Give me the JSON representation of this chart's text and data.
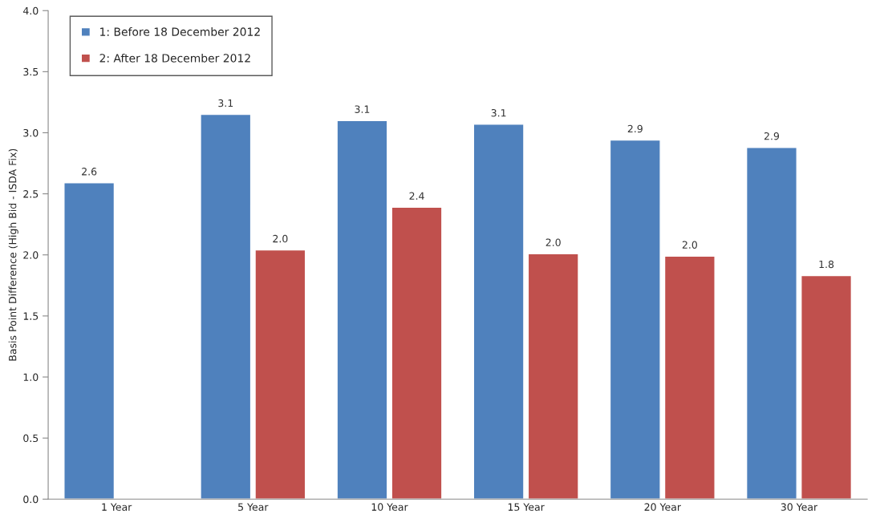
{
  "chart_data": {
    "type": "bar",
    "ylabel": "Basis Point Difference (High Bid - ISDA Fix)",
    "categories": [
      "1 Year",
      "5 Year",
      "10 Year",
      "15 Year",
      "20 Year",
      "30 Year"
    ],
    "series": [
      {
        "name": "1: Before 18 December 2012",
        "color": "#4f81bd",
        "values": [
          2.59,
          3.15,
          3.1,
          3.07,
          2.94,
          2.88
        ],
        "value_labels": [
          "2.6",
          "3.1",
          "3.1",
          "3.1",
          "2.9",
          "2.9"
        ]
      },
      {
        "name": "2: After 18 December 2012",
        "color": "#c0504d",
        "values": [
          null,
          2.04,
          2.39,
          2.01,
          1.99,
          1.83
        ],
        "value_labels": [
          null,
          "2.0",
          "2.4",
          "2.0",
          "2.0",
          "1.8"
        ]
      }
    ],
    "ylim": [
      0,
      4
    ],
    "yticks": [
      {
        "value": 0,
        "label": "0.0"
      },
      {
        "value": 0.5,
        "label": "0.5"
      },
      {
        "value": 1,
        "label": "1.0"
      },
      {
        "value": 1.5,
        "label": "1.5"
      },
      {
        "value": 2,
        "label": "2.0"
      },
      {
        "value": 2.5,
        "label": "2.5"
      },
      {
        "value": 3,
        "label": "3.0"
      },
      {
        "value": 3.5,
        "label": "3.5"
      },
      {
        "value": 4,
        "label": "4.0"
      }
    ],
    "grid": false,
    "legend": "top left"
  }
}
